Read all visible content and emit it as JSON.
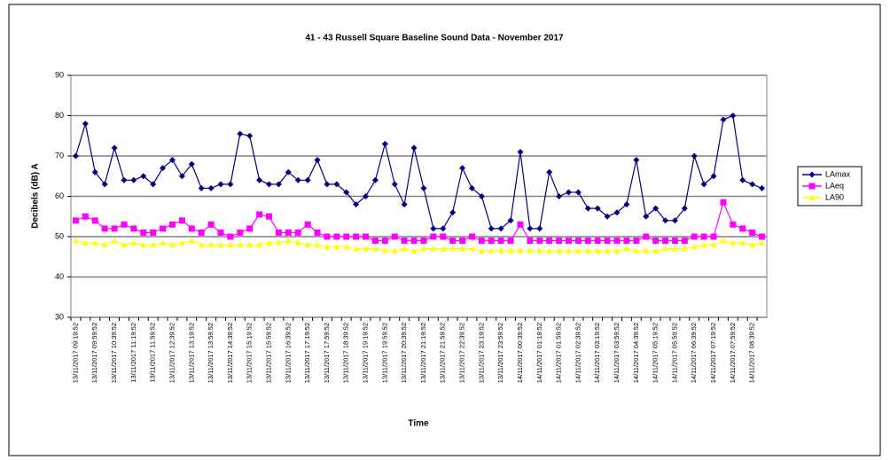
{
  "chart_data": {
    "type": "line",
    "title": "41 - 43 Russell Square Baseline Sound Data - November 2017",
    "x_label": "Time",
    "y_label": "Decibels (dB) A",
    "categories": [
      "13/11/2017 09:19:52",
      null,
      "13/11/2017 09:59:52",
      null,
      "13/11/2017 10:39:52",
      null,
      "13/11/2017 11:19:52",
      null,
      "13/11/2017 11:59:52",
      null,
      "13/11/2017 12:39:52",
      null,
      "13/11/2017 13:19:52",
      null,
      "13/11/2017 13:59:52",
      null,
      "13/11/2017 14:39:52",
      null,
      "13/11/2017 15:19:52",
      null,
      "13/11/2017 15:59:52",
      null,
      "13/11/2017 16:39:52",
      null,
      "13/11/2017 17:19:52",
      null,
      "13/11/2017 17:59:52",
      null,
      "13/11/2017 18:39:52",
      null,
      "13/11/2017 19:19:52",
      null,
      "13/11/2017 19:59:52",
      null,
      "13/11/2017 20:39:52",
      null,
      "13/11/2017 21:19:52",
      null,
      "13/11/2017 21:59:52",
      null,
      "13/11/2017 22:39:52",
      null,
      "13/11/2017 23:19:52",
      null,
      "13/11/2017 23:59:52",
      null,
      "14/11/2017 00:39:52",
      null,
      "14/11/2017 01:19:52",
      null,
      "14/11/2017 01:59:52",
      null,
      "14/11/2017 02:39:52",
      null,
      "14/11/2017 03:19:52",
      null,
      "14/11/2017 03:59:52",
      null,
      "14/11/2017 04:39:52",
      null,
      "14/11/2017 05:19:52",
      null,
      "14/11/2017 05:59:52",
      null,
      "14/11/2017 06:39:52",
      null,
      "14/11/2017 07:19:52",
      null,
      "14/11/2017 07:59:52",
      null,
      "14/11/2017 08:39:52",
      null
    ],
    "series": [
      {
        "name": "LAmax",
        "color": "#000080",
        "marker": "diamond",
        "values": [
          70,
          78,
          66,
          63,
          72,
          64,
          64,
          65,
          63,
          67,
          69,
          65,
          68,
          62,
          62,
          63,
          63,
          75.5,
          75,
          64,
          63,
          63,
          66,
          64,
          64,
          69,
          63,
          63,
          61,
          58,
          60,
          64,
          73,
          63,
          58,
          72,
          62,
          52,
          52,
          56,
          67,
          62,
          60,
          52,
          52,
          54,
          71,
          52,
          52,
          66,
          60,
          61,
          61,
          57,
          57,
          55,
          56,
          58,
          69,
          55,
          57,
          54,
          54,
          57,
          70,
          63,
          65,
          79,
          80,
          64,
          63,
          62
        ]
      },
      {
        "name": "LAeq",
        "color": "#ff00ff",
        "marker": "square",
        "values": [
          54,
          55,
          54,
          52,
          52,
          53,
          52,
          51,
          51,
          52,
          53,
          54,
          52,
          51,
          53,
          51,
          50,
          51,
          52,
          55.5,
          55,
          51,
          51,
          51,
          53,
          51,
          50,
          50,
          50,
          50,
          50,
          49,
          49,
          50,
          49,
          49,
          49,
          50,
          50,
          49,
          49,
          50,
          49,
          49,
          49,
          49,
          53,
          49,
          49,
          49,
          49,
          49,
          49,
          49,
          49,
          49,
          49,
          49,
          49,
          50,
          49,
          49,
          49,
          49,
          50,
          50,
          50,
          58.5,
          53,
          52,
          51,
          50
        ]
      },
      {
        "name": "LA90",
        "color": "#ffff00",
        "marker": "triangle",
        "values": [
          49,
          48.5,
          48.5,
          48,
          49,
          48,
          48.5,
          48,
          48,
          48.5,
          48,
          48.5,
          49,
          48,
          48,
          48,
          48,
          48,
          48,
          48,
          48.5,
          48.5,
          49,
          48.5,
          48,
          48,
          47.5,
          47.5,
          47.5,
          47,
          47,
          47,
          46.5,
          46.5,
          47,
          46.5,
          47,
          47,
          47,
          47,
          47,
          47,
          46.5,
          46.5,
          46.5,
          46.5,
          46.5,
          46.5,
          46.5,
          46.5,
          46.5,
          46.5,
          46.5,
          46.5,
          46.5,
          46.5,
          46.5,
          47,
          46.5,
          46.5,
          46.5,
          47,
          47,
          47,
          47.5,
          48,
          48,
          49,
          48.5,
          48.5,
          48,
          48.5
        ]
      }
    ],
    "ylim": [
      30,
      90
    ],
    "yticks": [
      30,
      40,
      50,
      60,
      70,
      80,
      90
    ],
    "grid": true,
    "legend": "right"
  }
}
